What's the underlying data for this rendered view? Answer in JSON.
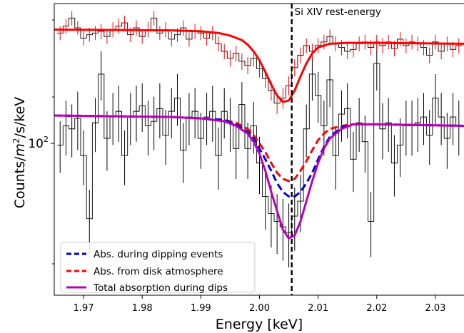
{
  "chart_data": {
    "type": "line",
    "title": "",
    "xlabel": "Energy [keV]",
    "ylabel_prefix": "Counts/",
    "ylabel_math": "m",
    "ylabel_sup": "2",
    "ylabel_suffix": "/s/keV",
    "xlim": [
      1.965,
      2.035
    ],
    "ylim_log10": [
      1.6,
      2.36
    ],
    "yscale": "log",
    "grid": false,
    "legend_location": "lower-left",
    "x_ticks": [
      1.97,
      1.98,
      1.99,
      2.0,
      2.01,
      2.02,
      2.03
    ],
    "x_tick_labels": [
      "1.97",
      "1.98",
      "1.99",
      "2.00",
      "2.01",
      "2.02",
      "2.03"
    ],
    "y_major_tick": 100,
    "y_major_base": "10",
    "y_major_exp": "2",
    "annotation": {
      "text": "Si XIV rest-energy",
      "x": 2.0055
    },
    "histograms": [
      {
        "color": "#000000",
        "x": [
          1.966,
          1.967,
          1.968,
          1.969,
          1.97,
          1.971,
          1.972,
          1.973,
          1.974,
          1.975,
          1.976,
          1.977,
          1.978,
          1.979,
          1.98,
          1.981,
          1.982,
          1.983,
          1.984,
          1.985,
          1.986,
          1.987,
          1.988,
          1.989,
          1.99,
          1.991,
          1.992,
          1.993,
          1.994,
          1.995,
          1.996,
          1.997,
          1.998,
          1.999,
          2.0,
          2.001,
          2.002,
          2.003,
          2.004,
          2.005,
          2.006,
          2.007,
          2.008,
          2.009,
          2.01,
          2.011,
          2.012,
          2.013,
          2.014,
          2.015,
          2.016,
          2.017,
          2.018,
          2.019,
          2.02,
          2.021,
          2.022,
          2.023,
          2.024,
          2.025,
          2.026,
          2.027,
          2.028,
          2.029,
          2.03,
          2.031,
          2.032,
          2.033,
          2.034
        ],
        "y": [
          98,
          110,
          108,
          115,
          92,
          63,
          112,
          150,
          102,
          116,
          120,
          92,
          116,
          120,
          124,
          110,
          113,
          122,
          104,
          120,
          130,
          95,
          116,
          120,
          102,
          116,
          120,
          92,
          120,
          112,
          96,
          125,
          96,
          110,
          88,
          72,
          65,
          62,
          60,
          58,
          64,
          70,
          108,
          150,
          132,
          110,
          145,
          92,
          118,
          122,
          90,
          112,
          100,
          62,
          160,
          108,
          112,
          88,
          98,
          110,
          110,
          112,
          116,
          104,
          130,
          116,
          102,
          116,
          110
        ],
        "err": [
          15,
          18,
          17,
          20,
          15,
          12,
          18,
          22,
          18,
          18,
          20,
          15,
          18,
          20,
          18,
          18,
          18,
          20,
          17,
          18,
          20,
          17,
          18,
          18,
          17,
          18,
          20,
          17,
          18,
          18,
          16,
          18,
          16,
          17,
          15,
          13,
          12,
          11,
          11,
          11,
          12,
          12,
          17,
          22,
          20,
          18,
          22,
          17,
          18,
          20,
          16,
          18,
          17,
          12,
          24,
          18,
          18,
          16,
          17,
          18,
          18,
          18,
          18,
          17,
          20,
          18,
          17,
          18,
          18
        ]
      },
      {
        "color": "#ff0000",
        "x": [
          1.966,
          1.967,
          1.968,
          1.969,
          1.97,
          1.971,
          1.972,
          1.973,
          1.974,
          1.975,
          1.976,
          1.977,
          1.978,
          1.979,
          1.98,
          1.981,
          1.982,
          1.983,
          1.984,
          1.985,
          1.986,
          1.987,
          1.988,
          1.989,
          1.99,
          1.991,
          1.992,
          1.993,
          1.994,
          1.995,
          1.996,
          1.997,
          1.998,
          1.999,
          2.0,
          2.001,
          2.002,
          2.003,
          2.004,
          2.005,
          2.006,
          2.007,
          2.008,
          2.009,
          2.01,
          2.011,
          2.012,
          2.013,
          2.014,
          2.015,
          2.016,
          2.017,
          2.018,
          2.019,
          2.02,
          2.021,
          2.022,
          2.023,
          2.024,
          2.025,
          2.026,
          2.027,
          2.028,
          2.029,
          2.03,
          2.031,
          2.032,
          2.033,
          2.034
        ],
        "y": [
          192,
          200,
          210,
          198,
          186,
          190,
          192,
          194,
          188,
          196,
          200,
          204,
          190,
          198,
          188,
          196,
          210,
          192,
          196,
          185,
          190,
          198,
          185,
          194,
          192,
          186,
          192,
          180,
          172,
          165,
          170,
          162,
          158,
          165,
          155,
          146,
          136,
          126,
          130,
          140,
          156,
          168,
          178,
          172,
          178,
          182,
          188,
          180,
          176,
          172,
          174,
          180,
          182,
          176,
          182,
          178,
          182,
          175,
          185,
          178,
          182,
          180,
          176,
          168,
          182,
          172,
          180,
          174,
          178
        ],
        "err": [
          8,
          9,
          9,
          8,
          8,
          8,
          8,
          9,
          8,
          9,
          9,
          9,
          8,
          9,
          8,
          9,
          9,
          8,
          9,
          8,
          8,
          9,
          8,
          9,
          8,
          8,
          8,
          8,
          8,
          8,
          8,
          8,
          8,
          8,
          8,
          8,
          8,
          8,
          8,
          8,
          8,
          8,
          8,
          8,
          8,
          8,
          8,
          8,
          8,
          8,
          8,
          8,
          8,
          8,
          8,
          8,
          8,
          8,
          8,
          8,
          8,
          8,
          8,
          8,
          8,
          8,
          8,
          8,
          8
        ]
      }
    ],
    "series": [
      {
        "name": "Abs. during dipping events",
        "color": "#0000dd",
        "dash": "dashed",
        "in_legend": true,
        "x": [
          1.965,
          1.985,
          1.99,
          1.994,
          1.996,
          1.998,
          1.999,
          2.0,
          2.001,
          2.002,
          2.003,
          2.004,
          2.005,
          2.006,
          2.007,
          2.008,
          2.009,
          2.01,
          2.011,
          2.012,
          2.014,
          2.016,
          2.02,
          2.035
        ],
        "y": [
          117,
          116,
          115,
          114,
          111,
          106,
          102,
          96,
          90,
          84,
          78,
          74,
          72,
          72,
          74,
          78,
          83,
          90,
          97,
          103,
          109,
          111,
          111,
          110
        ]
      },
      {
        "name": "Abs. from disk atmosphere",
        "color": "#ff0000",
        "dash": "dashed",
        "in_legend": true,
        "x": [
          1.965,
          1.985,
          1.99,
          1.994,
          1.996,
          1.998,
          1.999,
          2.0,
          2.001,
          2.002,
          2.003,
          2.004,
          2.005,
          2.006,
          2.007,
          2.008,
          2.009,
          2.01,
          2.011,
          2.012,
          2.014,
          2.016,
          2.02,
          2.035
        ],
        "y": [
          117,
          116,
          115,
          114,
          112,
          108,
          104,
          99,
          94,
          88,
          83,
          80,
          79,
          80,
          84,
          89,
          95,
          101,
          105,
          108,
          110,
          111,
          111,
          110
        ]
      },
      {
        "name": "Total absorption during dips",
        "color": "#bb00bb",
        "dash": "solid",
        "in_legend": true,
        "x": [
          1.965,
          1.985,
          1.99,
          1.994,
          1.996,
          1.998,
          1.999,
          2.0,
          2.001,
          2.002,
          2.003,
          2.004,
          2.005,
          2.006,
          2.007,
          2.008,
          2.009,
          2.01,
          2.011,
          2.012,
          2.014,
          2.016,
          2.02,
          2.035
        ],
        "y": [
          117,
          116,
          115,
          113,
          110,
          105,
          100,
          93,
          84,
          74,
          66,
          59,
          56,
          57,
          62,
          70,
          79,
          88,
          96,
          102,
          108,
          111,
          111,
          110
        ]
      },
      {
        "name": "",
        "color": "#ff0000",
        "dash": "solid",
        "in_legend": false,
        "x": [
          1.965,
          1.985,
          1.99,
          1.993,
          1.995,
          1.997,
          1.998,
          1.999,
          2.0,
          2.001,
          2.002,
          2.003,
          2.004,
          2.005,
          2.006,
          2.007,
          2.008,
          2.009,
          2.01,
          2.012,
          2.015,
          2.02,
          2.035
        ],
        "y": [
          196,
          195,
          194,
          192,
          189,
          184,
          179,
          172,
          163,
          152,
          141,
          132,
          127,
          128,
          136,
          148,
          160,
          170,
          176,
          180,
          181,
          181,
          180
        ]
      }
    ]
  }
}
